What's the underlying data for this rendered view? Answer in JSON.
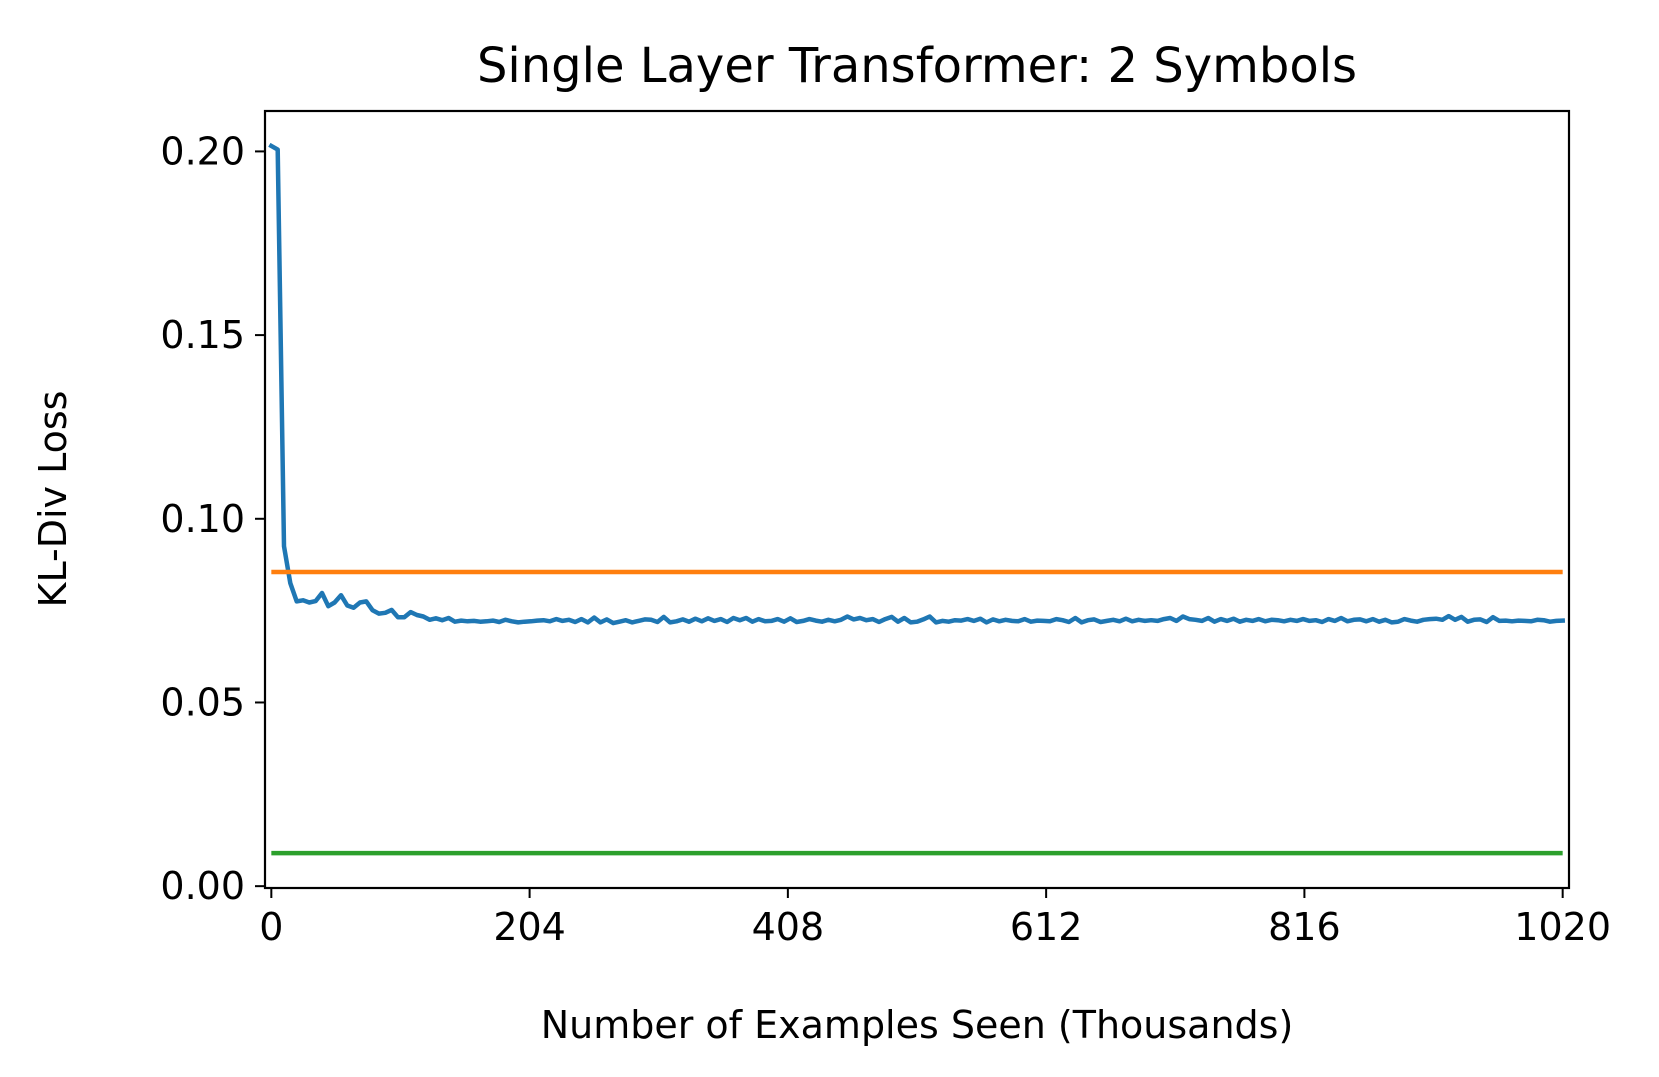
{
  "chart_data": {
    "type": "line",
    "title": "Single Layer Transformer: 2 Symbols",
    "xlabel": "Number of Examples Seen (Thousands)",
    "ylabel": "KL-Div Loss",
    "xlim": [
      -5,
      1025
    ],
    "ylim": [
      -0.0005,
      0.211
    ],
    "xticks": [
      0,
      204,
      408,
      612,
      816,
      1020
    ],
    "xtick_labels": [
      "0",
      "204",
      "408",
      "612",
      "816",
      "1020"
    ],
    "yticks": [
      0.0,
      0.05,
      0.1,
      0.15,
      0.2
    ],
    "ytick_labels": [
      "0.00",
      "0.05",
      "0.10",
      "0.15",
      "0.20"
    ],
    "grid": false,
    "series": [
      {
        "color": "#1f77b4",
        "style": "line",
        "x": [
          0,
          5,
          10,
          15,
          20,
          25,
          30,
          35,
          40,
          45,
          50,
          55,
          60,
          65,
          70,
          75,
          80,
          85,
          90,
          95,
          100,
          105,
          110,
          115,
          120,
          125,
          130,
          135,
          140,
          145,
          150,
          155,
          160,
          165,
          170,
          175,
          180,
          185,
          190,
          195,
          200,
          205,
          210,
          215,
          220,
          225,
          230,
          235,
          240,
          245,
          250,
          255,
          260,
          265,
          270,
          275,
          280,
          285,
          290,
          295,
          300,
          305,
          310,
          315,
          320,
          325,
          330,
          335,
          340,
          345,
          350,
          355,
          360,
          365,
          370,
          375,
          380,
          385,
          390,
          395,
          400,
          405,
          410,
          415,
          420,
          425,
          430,
          435,
          440,
          445,
          450,
          455,
          460,
          465,
          470,
          475,
          480,
          485,
          490,
          495,
          500,
          505,
          510,
          515,
          520,
          525,
          530,
          535,
          540,
          545,
          550,
          555,
          560,
          565,
          570,
          575,
          580,
          585,
          590,
          595,
          600,
          605,
          610,
          615,
          620,
          625,
          630,
          635,
          640,
          645,
          650,
          655,
          660,
          665,
          670,
          675,
          680,
          685,
          690,
          695,
          700,
          705,
          710,
          715,
          720,
          725,
          730,
          735,
          740,
          745,
          750,
          755,
          760,
          765,
          770,
          775,
          780,
          785,
          790,
          795,
          800,
          805,
          810,
          815,
          820,
          825,
          830,
          835,
          840,
          845,
          850,
          855,
          860,
          865,
          870,
          875,
          880,
          885,
          890,
          895,
          900,
          905,
          910,
          915,
          920,
          925,
          930,
          935,
          940,
          945,
          950,
          955,
          960,
          965,
          970,
          975,
          980,
          985,
          990,
          995,
          1000,
          1005,
          1010,
          1015,
          1020
        ],
        "y": [
          0.2015,
          0.2005,
          0.0925,
          0.0825,
          0.0775,
          0.0778,
          0.0772,
          0.0776,
          0.0798,
          0.0762,
          0.0772,
          0.0792,
          0.0764,
          0.0758,
          0.0772,
          0.0775,
          0.0751,
          0.0742,
          0.0744,
          0.0752,
          0.0732,
          0.0732,
          0.0746,
          0.0738,
          0.0734,
          0.0725,
          0.0729,
          0.0724,
          0.073,
          0.072,
          0.0723,
          0.0721,
          0.0722,
          0.072,
          0.0721,
          0.0723,
          0.0719,
          0.0725,
          0.0721,
          0.0718,
          0.072,
          0.0721,
          0.0723,
          0.0724,
          0.0721,
          0.0727,
          0.0722,
          0.0725,
          0.0719,
          0.0727,
          0.0718,
          0.0731,
          0.0718,
          0.0726,
          0.0716,
          0.072,
          0.0724,
          0.0718,
          0.0722,
          0.0726,
          0.0725,
          0.0719,
          0.0733,
          0.0718,
          0.0721,
          0.0726,
          0.072,
          0.0728,
          0.0721,
          0.0729,
          0.0722,
          0.0727,
          0.0719,
          0.073,
          0.0724,
          0.073,
          0.072,
          0.0727,
          0.0721,
          0.0722,
          0.0727,
          0.072,
          0.0729,
          0.0719,
          0.0722,
          0.0727,
          0.0723,
          0.072,
          0.0725,
          0.0721,
          0.0725,
          0.0734,
          0.0726,
          0.073,
          0.0724,
          0.0727,
          0.0719,
          0.0727,
          0.0733,
          0.072,
          0.073,
          0.0718,
          0.072,
          0.0726,
          0.0734,
          0.0718,
          0.0722,
          0.072,
          0.0724,
          0.0723,
          0.0727,
          0.0722,
          0.0728,
          0.0718,
          0.0726,
          0.0721,
          0.0725,
          0.0722,
          0.0721,
          0.0727,
          0.072,
          0.0723,
          0.0722,
          0.0721,
          0.0727,
          0.0724,
          0.0719,
          0.073,
          0.0718,
          0.0724,
          0.0726,
          0.0719,
          0.0722,
          0.0725,
          0.0721,
          0.0728,
          0.0721,
          0.0725,
          0.0722,
          0.0724,
          0.0722,
          0.0727,
          0.073,
          0.0722,
          0.0734,
          0.0727,
          0.0725,
          0.0722,
          0.073,
          0.072,
          0.0727,
          0.0722,
          0.0728,
          0.072,
          0.0725,
          0.0722,
          0.0727,
          0.0721,
          0.0725,
          0.0724,
          0.0721,
          0.0725,
          0.0722,
          0.0727,
          0.0722,
          0.0724,
          0.0719,
          0.0727,
          0.0722,
          0.073,
          0.0721,
          0.0725,
          0.0726,
          0.0721,
          0.0727,
          0.072,
          0.0725,
          0.0718,
          0.072,
          0.0727,
          0.0723,
          0.072,
          0.0725,
          0.0727,
          0.0728,
          0.0725,
          0.0735,
          0.0725,
          0.0733,
          0.072,
          0.0725,
          0.0726,
          0.0719,
          0.0732,
          0.0722,
          0.0723,
          0.0721,
          0.0723,
          0.0722,
          0.0721,
          0.0725,
          0.0724,
          0.072,
          0.0722,
          0.0723
        ]
      },
      {
        "color": "#ff7f0e",
        "style": "hline",
        "y": 0.0855
      },
      {
        "color": "#2ca02c",
        "style": "hline",
        "y": 0.009
      }
    ]
  }
}
